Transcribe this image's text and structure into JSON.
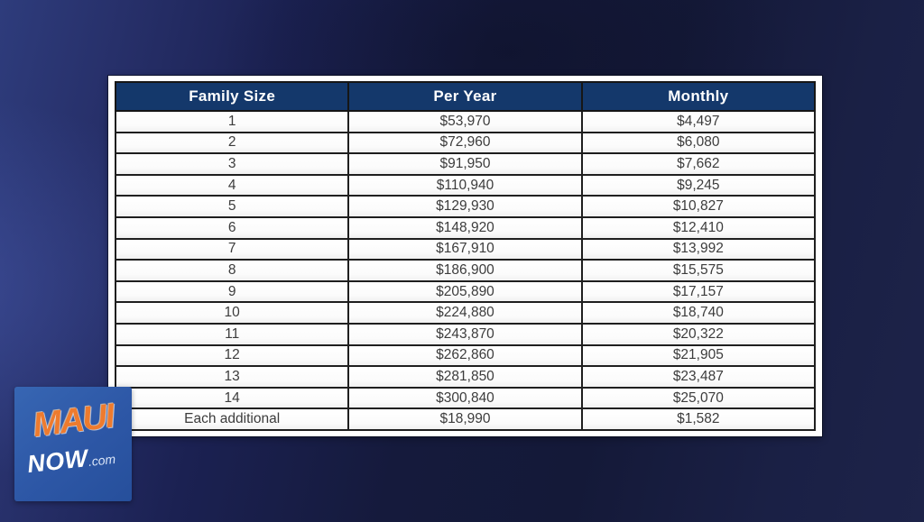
{
  "chart_data": {
    "type": "table",
    "title": "",
    "columns": [
      "Family Size",
      "Per Year",
      "Monthly"
    ],
    "rows": [
      [
        "1",
        "$53,970",
        "$4,497"
      ],
      [
        "2",
        "$72,960",
        "$6,080"
      ],
      [
        "3",
        "$91,950",
        "$7,662"
      ],
      [
        "4",
        "$110,940",
        "$9,245"
      ],
      [
        "5",
        "$129,930",
        "$10,827"
      ],
      [
        "6",
        "$148,920",
        "$12,410"
      ],
      [
        "7",
        "$167,910",
        "$13,992"
      ],
      [
        "8",
        "$186,900",
        "$15,575"
      ],
      [
        "9",
        "$205,890",
        "$17,157"
      ],
      [
        "10",
        "$224,880",
        "$18,740"
      ],
      [
        "11",
        "$243,870",
        "$20,322"
      ],
      [
        "12",
        "$262,860",
        "$21,905"
      ],
      [
        "13",
        "$281,850",
        "$23,487"
      ],
      [
        "14",
        "$300,840",
        "$25,070"
      ],
      [
        "Each additional",
        "$18,990",
        "$1,582"
      ]
    ],
    "layout_hints": {
      "header_position": "top",
      "grid": true,
      "column_alignment": [
        "center",
        "center",
        "center"
      ]
    }
  },
  "logo": {
    "maui": "MAUI",
    "now": "NOW",
    "com": ".com"
  },
  "colors": {
    "table_header_bg": "#14386b",
    "table_header_text": "#ffffff",
    "table_body_text": "#3c3c3c",
    "table_border": "#1f1f1f",
    "panel_bg": "#ffffff",
    "background_left_blue": "#2e3c7c",
    "background_dark_navy": "#141938",
    "logo_bg": "#2d57a6",
    "logo_maui_orange": "#ee7b2e",
    "logo_now_white": "#ffffff"
  }
}
